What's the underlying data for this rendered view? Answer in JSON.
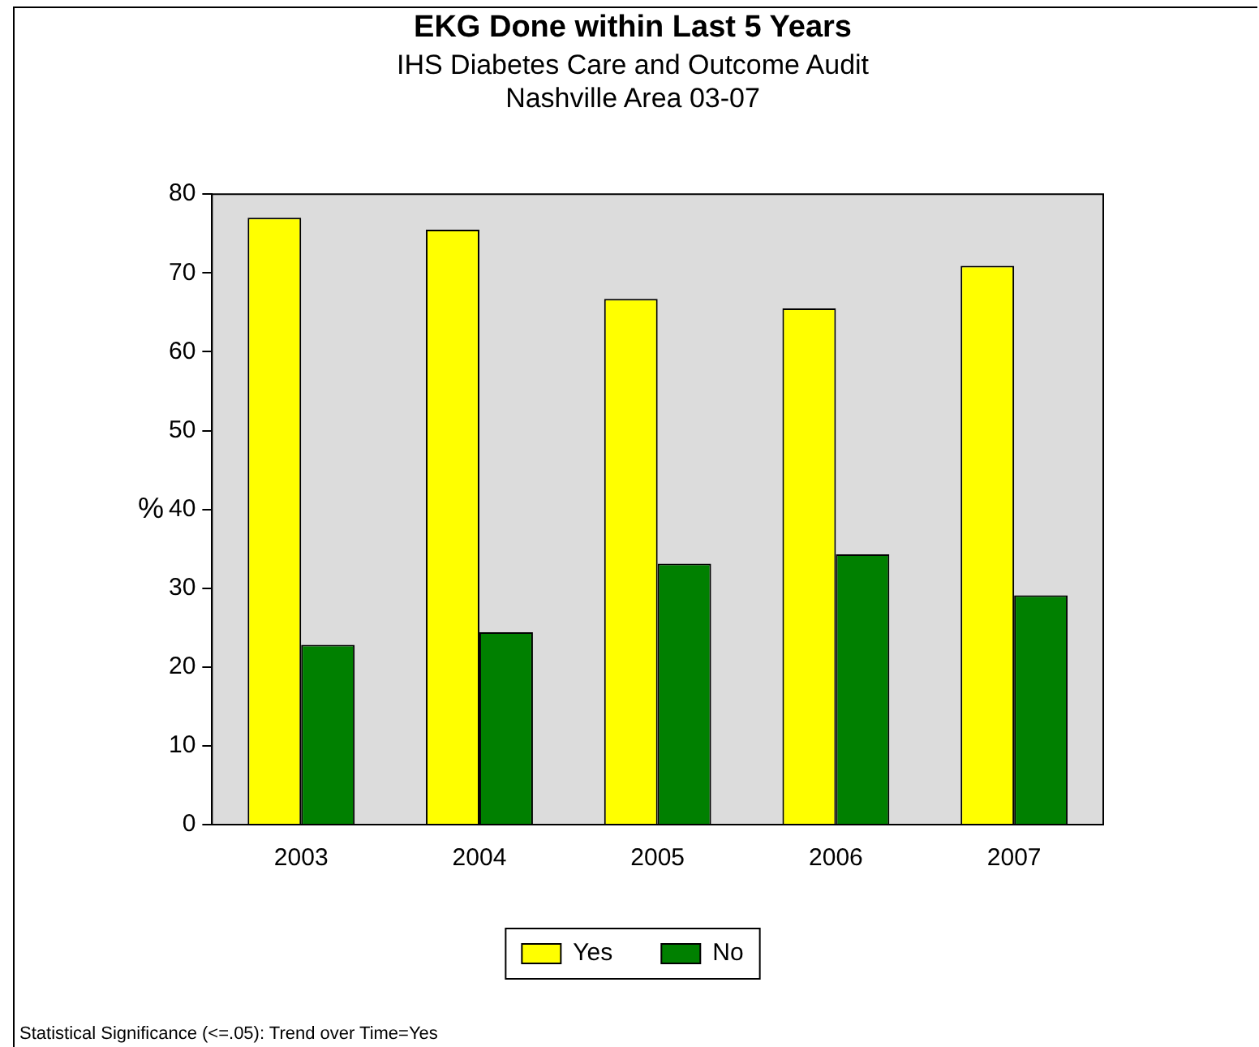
{
  "chart_data": {
    "type": "bar",
    "title": "EKG Done within Last 5 Years",
    "subtitle": "IHS Diabetes Care and Outcome Audit\nNashville Area 03-07",
    "ylabel": "%",
    "categories": [
      "2003",
      "2004",
      "2005",
      "2006",
      "2007"
    ],
    "series": [
      {
        "name": "Yes",
        "color": "#ffff00",
        "values": [
          77.0,
          75.5,
          66.7,
          65.5,
          70.9
        ]
      },
      {
        "name": "No",
        "color": "#008000",
        "values": [
          22.8,
          24.4,
          33.1,
          34.3,
          29.1
        ]
      }
    ],
    "ylim": [
      0,
      80
    ],
    "yticks": [
      0,
      10,
      20,
      30,
      40,
      50,
      60,
      70,
      80
    ],
    "grid": false,
    "legend": "bottom",
    "annotations": [
      "Statistical Significance (<=.05): Trend over Time=Yes"
    ]
  }
}
